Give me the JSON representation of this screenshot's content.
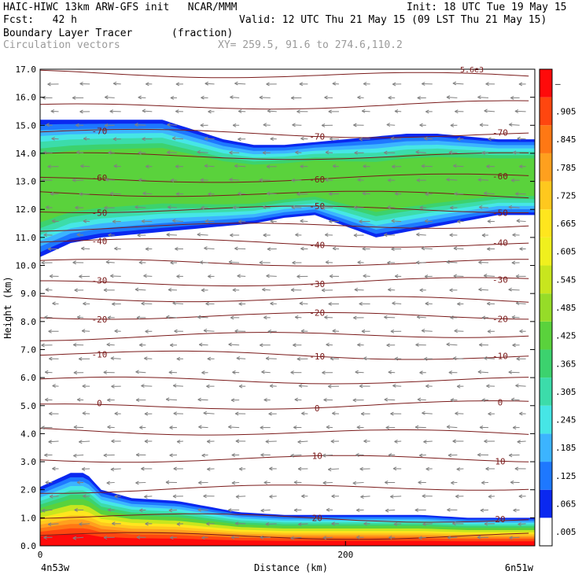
{
  "header": {
    "line1_left": "HAIC-HIWC 13km ARW-GFS init   NCAR/MMM",
    "line1_right": "Init: 18 UTC Tue 19 May 15",
    "line2_left": "Fcst:   42 h",
    "line2_right": "Valid: 12 UTC Thu 21 May 15 (09 LST Thu 21 May 15)",
    "line3_left": "Boundary Layer Tracer",
    "line3_unit": "(fraction)",
    "line4_left": "Circulation vectors",
    "line4_xy": "XY= 259.5, 91.6 to 274.6,110.2"
  },
  "chart_data": {
    "type": "heatmap",
    "xlabel": "Distance (km)",
    "ylabel": "Height (km)",
    "x_ticks": [
      {
        "value": 0,
        "label": "0"
      },
      {
        "value": 200,
        "label": "200"
      }
    ],
    "x_end_labels": {
      "left": "4n53w",
      "right": "6n51w"
    },
    "xlim": [
      0,
      324
    ],
    "ylim": [
      0,
      17
    ],
    "y_ticks": [
      "0.0",
      "1.0",
      "2.0",
      "3.0",
      "4.0",
      "5.0",
      "6.0",
      "7.0",
      "8.0",
      "9.0",
      "10.0",
      "11.0",
      "12.0",
      "13.0",
      "14.0",
      "15.0",
      "16.0",
      "17.0"
    ],
    "colorbar": {
      "labels": [
        ".005",
        ".065",
        ".125",
        ".185",
        ".245",
        ".305",
        ".365",
        ".425",
        ".485",
        ".545",
        ".605",
        ".665",
        ".725",
        ".785",
        ".845",
        ".905",
        "–"
      ],
      "colors": [
        "#ffffff",
        "#0a28f0",
        "#1e78ff",
        "#3cb4ff",
        "#46e6e6",
        "#3cdcaa",
        "#3cd26e",
        "#5ad23c",
        "#96dc28",
        "#c8e61e",
        "#f0f01e",
        "#ffe61e",
        "#ffc81e",
        "#ffa01e",
        "#ff7814",
        "#ff460f",
        "#ff0a0a"
      ]
    },
    "tracer_layers": [
      {
        "name": "boundary-layer",
        "top_km": [
          2.1,
          2.6,
          2.6,
          2.0,
          1.7,
          1.6,
          1.4,
          1.2,
          1.1,
          1.1,
          1.1,
          1.1,
          1.0,
          1.0,
          1.0
        ],
        "x_km": [
          0,
          20,
          30,
          40,
          60,
          90,
          110,
          130,
          160,
          190,
          220,
          250,
          280,
          310,
          324
        ]
      },
      {
        "name": "upper-plume",
        "bottom_km": [
          10.3,
          10.8,
          11.0,
          11.2,
          11.4,
          11.5,
          11.7,
          11.8,
          11.4,
          11.0,
          11.2,
          11.4,
          11.6,
          11.8,
          11.8
        ],
        "top_km": [
          15.2,
          15.2,
          15.2,
          15.2,
          14.5,
          14.3,
          14.3,
          14.4,
          14.5,
          14.6,
          14.7,
          14.7,
          14.6,
          14.5,
          14.5
        ],
        "x_km": [
          0,
          20,
          40,
          80,
          120,
          140,
          160,
          180,
          200,
          220,
          240,
          260,
          280,
          300,
          324
        ]
      }
    ],
    "temperature_contours": {
      "units": "C",
      "labeled": [
        {
          "value": "-70",
          "height_km": 14.7
        },
        {
          "value": "-60",
          "height_km": 13.1
        },
        {
          "value": "-50",
          "height_km": 12.0
        },
        {
          "value": "-40",
          "height_km": 10.8
        },
        {
          "value": "-30",
          "height_km": 9.4
        },
        {
          "value": "-20",
          "height_km": 8.2
        },
        {
          "value": "-10",
          "height_km": 6.8
        },
        {
          "value": "0",
          "height_km": 5.0
        },
        {
          "value": "10",
          "height_km": 3.1
        },
        {
          "value": "20",
          "height_km": 1.0
        }
      ],
      "line_color": "#7a1a1a"
    },
    "vector_color": "#808080",
    "top_partial_label": "5.6e3"
  }
}
